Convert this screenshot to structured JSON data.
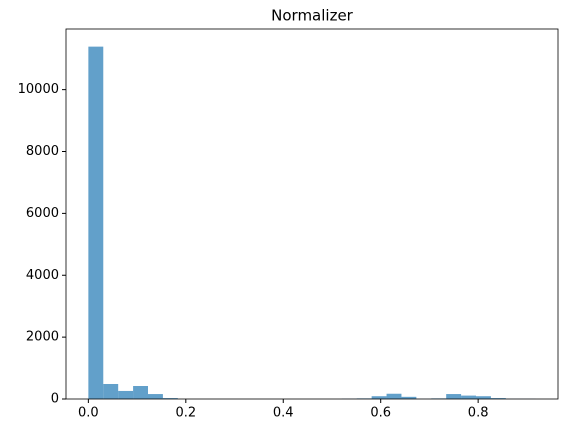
{
  "chart_data": {
    "type": "histogram",
    "title": "Normalizer",
    "bins": [
      0,
      0.0306,
      0.0612,
      0.0918,
      0.1224,
      0.153,
      0.1836,
      0.2142,
      0.2448,
      0.2754,
      0.306,
      0.3366,
      0.3672,
      0.3978,
      0.4284,
      0.459,
      0.4896,
      0.5202,
      0.5508,
      0.5814,
      0.612,
      0.6426,
      0.6732,
      0.7038,
      0.7344,
      0.765,
      0.7956,
      0.8262,
      0.8568,
      0.8874,
      0.918
    ],
    "values": [
      11390,
      485,
      260,
      420,
      160,
      30,
      0,
      0,
      0,
      0,
      0,
      0,
      0,
      0,
      0,
      0,
      0,
      10,
      20,
      90,
      170,
      70,
      5,
      20,
      160,
      110,
      90,
      30,
      5,
      5
    ],
    "color": "#1f77b4",
    "xlim": [
      -0.0459,
      0.9639
    ],
    "xticks": [
      {
        "value": 0,
        "label": "0.0"
      },
      0.2,
      0.4,
      0.6,
      0.8
    ],
    "ylim": [
      0,
      11960
    ],
    "yticks": [
      0,
      2000,
      4000,
      6000,
      8000,
      10000
    ]
  }
}
